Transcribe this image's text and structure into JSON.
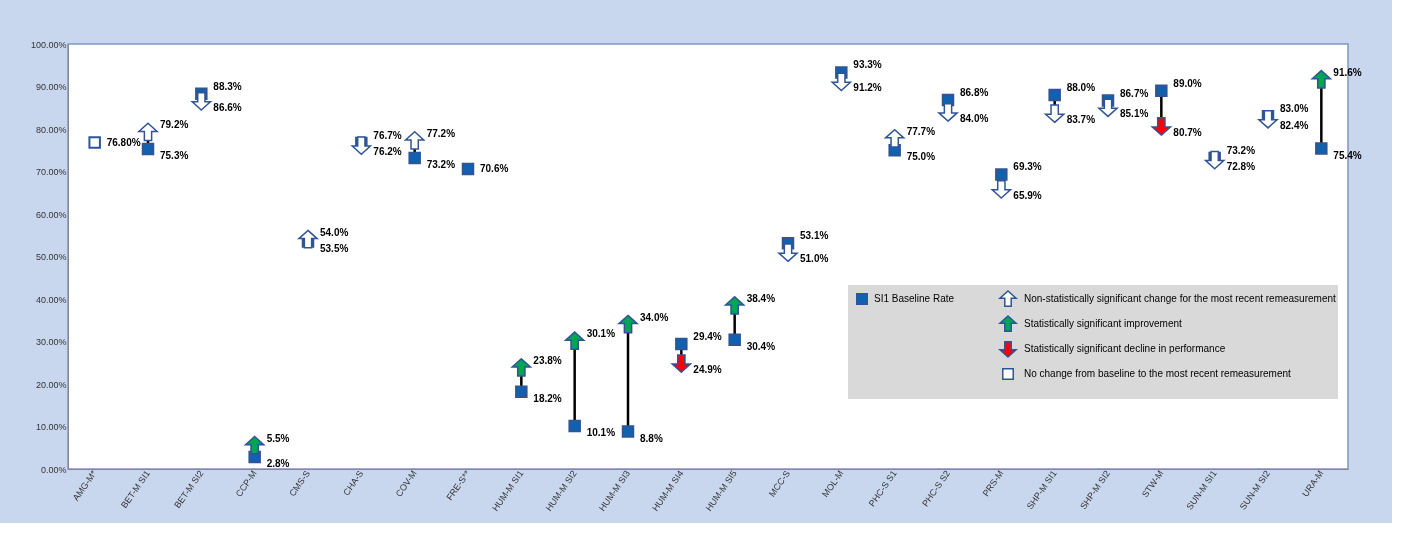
{
  "chart_data": {
    "type": "scatter",
    "categories": [
      "AMG-M*",
      "BET-M SI1",
      "BET-M SI2",
      "CCP-M",
      "CMS-S",
      "CHA-S",
      "COV-M",
      "FRE-S**",
      "HUM-M SI1",
      "HUM-M SI2",
      "HUM-M SI3",
      "HUM-M SI4",
      "HUM-M SI5",
      "MCC-S",
      "MOL-M",
      "PHC-S S1",
      "PHC-S S2",
      "PRS-M",
      "SHP-M SI1",
      "SHP-M SI2",
      "STW-M",
      "SUN-M SI1",
      "SUN-M SI2",
      "URA-M"
    ],
    "series": [
      {
        "name": "SI1 Baseline Rate",
        "color": "#0f62b0",
        "marker": "square",
        "values": [
          null,
          75.3,
          88.3,
          2.8,
          53.5,
          76.7,
          73.2,
          70.6,
          18.2,
          10.1,
          8.8,
          29.4,
          30.4,
          53.1,
          93.3,
          75.0,
          86.8,
          69.3,
          88.0,
          86.7,
          89.0,
          73.2,
          83.0,
          75.4
        ],
        "value_labels": [
          null,
          "75.3%",
          "88.3%",
          "2.8%",
          "53.5%",
          "76.7%",
          "73.2%",
          "70.6%",
          "18.2%",
          "10.1%",
          "8.8%",
          "29.4%",
          "30.4%",
          "53.1%",
          "93.3%",
          "75.0%",
          "86.8%",
          "69.3%",
          "88.0%",
          "86.7%",
          "89.0%",
          "73.2%",
          "83.0%",
          "75.4%"
        ]
      },
      {
        "name": "Non-statistically significant change for the most recent remeasurement",
        "color": "#ffffff",
        "marker": "triangle",
        "values": [
          null,
          79.2,
          86.6,
          null,
          54.0,
          76.2,
          77.2,
          null,
          null,
          null,
          null,
          null,
          null,
          51.0,
          91.2,
          77.7,
          84.0,
          65.9,
          83.7,
          85.1,
          null,
          72.8,
          82.4,
          null
        ],
        "value_labels": [
          null,
          "79.2%",
          "86.6%",
          null,
          "54.0%",
          "76.2%",
          "77.2%",
          null,
          null,
          null,
          null,
          null,
          null,
          "51.0%",
          "91.2%",
          "77.7%",
          "84.0%",
          "65.9%",
          "83.7%",
          "85.1%",
          null,
          "72.8%",
          "82.4%",
          null
        ]
      },
      {
        "name": "Statistically significant improvement",
        "color": "#00a651",
        "marker": "triangle",
        "values": [
          null,
          null,
          null,
          5.5,
          null,
          null,
          null,
          null,
          23.8,
          30.1,
          34.0,
          null,
          38.4,
          null,
          null,
          null,
          null,
          null,
          null,
          null,
          null,
          null,
          null,
          91.6
        ],
        "value_labels": [
          null,
          null,
          null,
          "5.5%",
          null,
          null,
          null,
          null,
          "23.8%",
          "30.1%",
          "34.0%",
          null,
          "38.4%",
          null,
          null,
          null,
          null,
          null,
          null,
          null,
          null,
          null,
          null,
          "91.6%"
        ]
      },
      {
        "name": "Statistically significant decline in performance",
        "color": "#ff0000",
        "marker": "triangle",
        "values": [
          null,
          null,
          null,
          null,
          null,
          null,
          null,
          null,
          null,
          null,
          null,
          24.9,
          null,
          null,
          null,
          null,
          null,
          null,
          null,
          null,
          80.7,
          null,
          null,
          null
        ],
        "value_labels": [
          null,
          null,
          null,
          null,
          null,
          null,
          null,
          null,
          null,
          null,
          null,
          "24.9%",
          null,
          null,
          null,
          null,
          null,
          null,
          null,
          null,
          "80.7%",
          null,
          null,
          null
        ]
      },
      {
        "name": "No change from baseline to the most recent remeasurement",
        "color": "#ffffff",
        "marker": "square",
        "values": [
          76.8,
          null,
          null,
          null,
          null,
          null,
          null,
          null,
          null,
          null,
          null,
          null,
          null,
          null,
          null,
          null,
          null,
          null,
          null,
          null,
          null,
          null,
          null,
          null
        ],
        "value_labels": [
          "76.80%",
          null,
          null,
          null,
          null,
          null,
          null,
          null,
          null,
          null,
          null,
          null,
          null,
          null,
          null,
          null,
          null,
          null,
          null,
          null,
          null,
          null,
          null,
          null
        ]
      }
    ],
    "ylim": [
      0,
      100
    ],
    "yticks": [
      {
        "value": 0,
        "label": "0.00%"
      },
      {
        "value": 10,
        "label": "10.00%"
      },
      {
        "value": 20,
        "label": "20.00%"
      },
      {
        "value": 30,
        "label": "30.00%"
      },
      {
        "value": 40,
        "label": "40.00%"
      },
      {
        "value": 50,
        "label": "50.00%"
      },
      {
        "value": 60,
        "label": "60.00%"
      },
      {
        "value": 70,
        "label": "70.00%"
      },
      {
        "value": 80,
        "label": "80.00%"
      },
      {
        "value": 90,
        "label": "90.00%"
      },
      {
        "value": 100,
        "label": "100.00%"
      }
    ],
    "grid": false,
    "legend": "bottom right"
  }
}
